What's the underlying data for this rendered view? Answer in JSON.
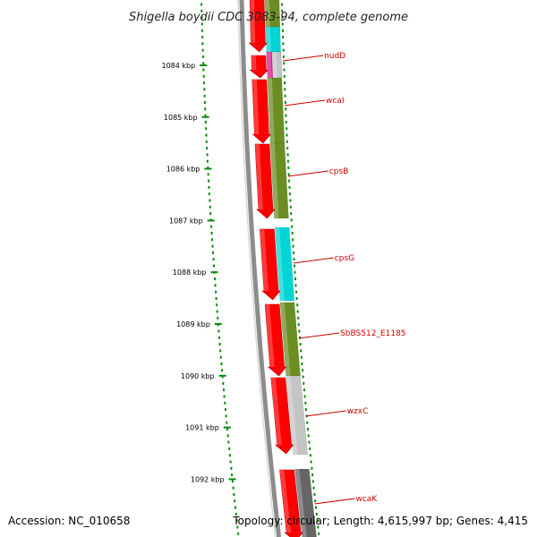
{
  "title": "Shigella boydii CDC 3083-94, complete genome",
  "ticks": [
    {
      "label": "1084 kbp"
    },
    {
      "label": "1085 kbp"
    },
    {
      "label": "1086 kbp"
    },
    {
      "label": "1087 kbp"
    },
    {
      "label": "1088 kbp"
    },
    {
      "label": "1089 kbp"
    },
    {
      "label": "1090 kbp"
    },
    {
      "label": "1091 kbp"
    },
    {
      "label": "1092 kbp"
    }
  ],
  "genes": [
    {
      "label": "nudD"
    },
    {
      "label": "wcaI"
    },
    {
      "label": "cpsB"
    },
    {
      "label": "cpsG"
    },
    {
      "label": "SbBS512_E1185"
    },
    {
      "label": "wzxC"
    },
    {
      "label": "wcaK"
    }
  ],
  "colors": {
    "cds": "#ff0000",
    "olive": "#6b8e23",
    "cyan": "#00d4d4",
    "magenta": "#e0138f",
    "light_gray": "#c4c4c4",
    "dark_gray": "#666666",
    "backbone": "#8c8c8c",
    "tick_dots": "#0a8a0a",
    "label": "#cc0000"
  },
  "footer": {
    "accession": "Accession: NC_010658",
    "summary": "Topology: circular; Length: 4,615,997 bp; Genes: 4,415"
  }
}
